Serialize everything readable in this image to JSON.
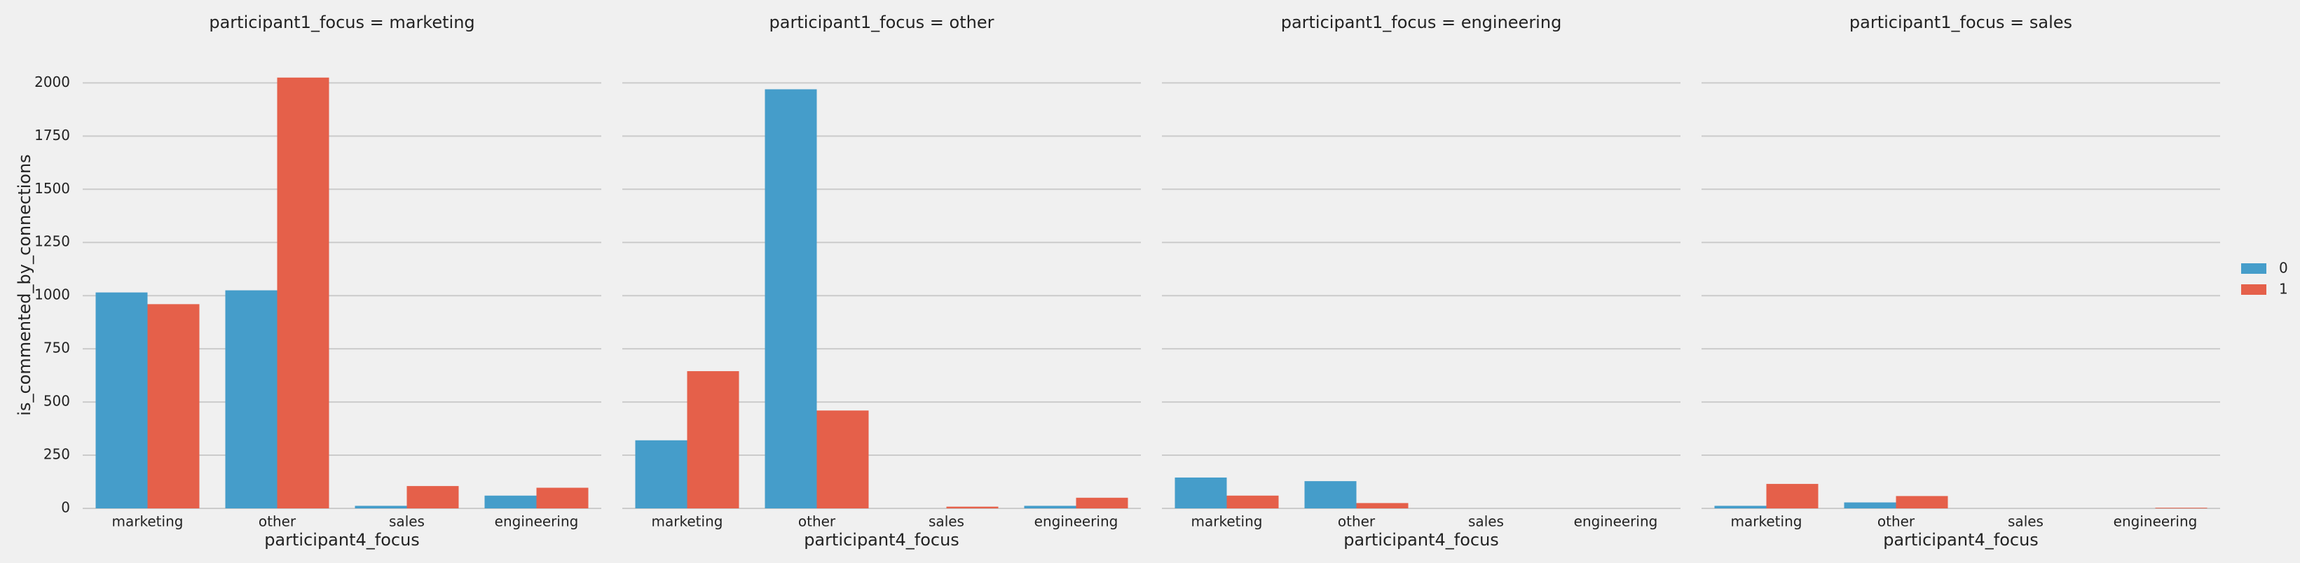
{
  "colors": {
    "series0": "#459dca",
    "series1": "#e5604a",
    "grid": "#cbcbcb",
    "background": "#f0f0f0"
  },
  "chart_data": {
    "type": "bar",
    "ylabel": "is_commented_by_connections",
    "xlabel": "participant4_focus",
    "categories": [
      "marketing",
      "other",
      "sales",
      "engineering"
    ],
    "y_ticks": [
      "0",
      "250",
      "500",
      "750",
      "1000",
      "1250",
      "1500",
      "1750",
      "2000"
    ],
    "ylim": [
      0,
      2100
    ],
    "grid": "horizontal",
    "legend": {
      "position": "right",
      "entries": [
        "0",
        "1"
      ]
    },
    "panels": [
      {
        "title": "participant1_focus = marketing",
        "series": [
          {
            "name": "0",
            "values": [
              1015,
              1025,
              12,
              60
            ]
          },
          {
            "name": "1",
            "values": [
              960,
              2025,
              105,
              97
            ]
          }
        ]
      },
      {
        "title": "participant1_focus = other",
        "series": [
          {
            "name": "0",
            "values": [
              320,
              1970,
              0,
              12
            ]
          },
          {
            "name": "1",
            "values": [
              645,
              460,
              8,
              50
            ]
          }
        ]
      },
      {
        "title": "participant1_focus = engineering",
        "series": [
          {
            "name": "0",
            "values": [
              145,
              128,
              0,
              0
            ]
          },
          {
            "name": "1",
            "values": [
              60,
              25,
              0,
              0
            ]
          }
        ]
      },
      {
        "title": "participant1_focus = sales",
        "series": [
          {
            "name": "0",
            "values": [
              12,
              28,
              0,
              0
            ]
          },
          {
            "name": "1",
            "values": [
              115,
              58,
              0,
              3
            ]
          }
        ]
      }
    ]
  }
}
